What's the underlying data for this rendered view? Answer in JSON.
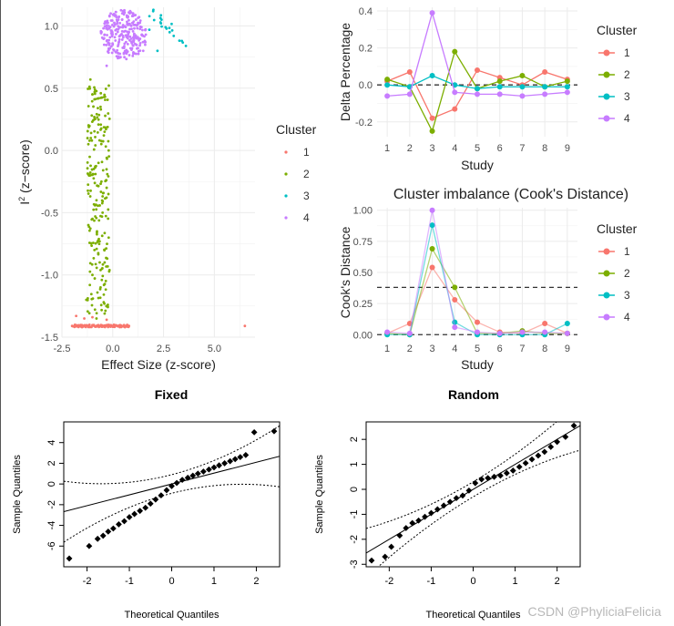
{
  "watermark": "CSDN @PhyliciaFelicia",
  "palette": {
    "cluster1": "#F8766D",
    "cluster2": "#7CAE00",
    "cluster3": "#00BFC4",
    "cluster4": "#C77CFF",
    "grid": "#EBEBEB",
    "ref_line": "#333333"
  },
  "chart_data": [
    {
      "type": "scatter",
      "xlabel": "Effect Size (z-score)",
      "ylabel": "I² (z−score)",
      "ylabel_main": "I",
      "ylabel_sup": "2",
      "ylabel_rest": " (z−score)",
      "xlim": [
        -2.5,
        7.0
      ],
      "ylim": [
        -1.5,
        1.15
      ],
      "xticks": [
        -2.5,
        0.0,
        2.5,
        5.0
      ],
      "xtick_labels": [
        "-2.5",
        "0.0",
        "2.5",
        "5.0"
      ],
      "yticks": [
        -1.5,
        -1.0,
        -0.5,
        0.0,
        0.5,
        1.0
      ],
      "ytick_labels": [
        "-1.5",
        "-1.0",
        "-0.5",
        "0.0",
        "0.5",
        "1.0"
      ],
      "grid": true,
      "legend": {
        "title": "Cluster",
        "labels": [
          "1",
          "2",
          "3",
          "4"
        ],
        "position": "right"
      },
      "series": [
        {
          "name": "1",
          "points": [
            [
              -2.0,
              -1.41
            ],
            [
              -1.6,
              -1.41
            ],
            [
              -1.2,
              -1.41
            ],
            [
              -0.8,
              -1.41
            ],
            [
              -0.4,
              -1.41
            ],
            [
              0.0,
              -1.41
            ],
            [
              0.4,
              -1.41
            ],
            [
              0.8,
              -1.41
            ],
            [
              -1.8,
              -1.33
            ],
            [
              -1.4,
              -1.35
            ],
            [
              -1.0,
              -1.34
            ],
            [
              -0.3,
              -1.36
            ],
            [
              6.5,
              -1.41
            ]
          ]
        },
        {
          "name": "2",
          "points": [
            [
              -1.1,
              0.57
            ],
            [
              -1.0,
              0.45
            ],
            [
              -0.6,
              0.35
            ],
            [
              -0.9,
              0.25
            ],
            [
              -0.4,
              0.15
            ],
            [
              -1.2,
              0.05
            ],
            [
              -0.2,
              0.0
            ],
            [
              -0.7,
              -0.1
            ],
            [
              -1.1,
              -0.2
            ],
            [
              -0.3,
              -0.3
            ],
            [
              -0.8,
              -0.4
            ],
            [
              -0.5,
              -0.5
            ],
            [
              -1.2,
              -0.6
            ],
            [
              -0.2,
              -0.7
            ],
            [
              -0.9,
              -0.8
            ],
            [
              -0.4,
              -0.9
            ],
            [
              -1.0,
              -1.0
            ],
            [
              -0.6,
              -1.1
            ],
            [
              -1.3,
              -1.2
            ],
            [
              -0.3,
              -1.25
            ],
            [
              -0.8,
              -1.35
            ]
          ]
        },
        {
          "name": "3",
          "points": [
            [
              1.8,
              0.97
            ],
            [
              2.0,
              1.13
            ],
            [
              2.4,
              1.05
            ],
            [
              2.8,
              0.95
            ],
            [
              3.0,
              0.92
            ],
            [
              3.4,
              0.88
            ],
            [
              3.6,
              0.84
            ],
            [
              2.2,
              0.8
            ],
            [
              2.6,
              0.99
            ]
          ]
        },
        {
          "name": "4",
          "points": [
            [
              -0.3,
              0.68
            ],
            [
              -0.1,
              1.1
            ],
            [
              0.2,
              1.05
            ],
            [
              0.5,
              1.0
            ],
            [
              0.8,
              0.95
            ],
            [
              1.2,
              0.9
            ],
            [
              1.5,
              0.8
            ],
            [
              0.0,
              0.85
            ],
            [
              -0.4,
              0.93
            ],
            [
              0.3,
              0.75
            ],
            [
              1.0,
              1.08
            ],
            [
              -0.2,
              1.0
            ]
          ]
        }
      ]
    },
    {
      "type": "line",
      "xlabel": "Study",
      "ylabel": "Delta Percentage",
      "x": [
        1,
        2,
        3,
        4,
        5,
        6,
        7,
        8,
        9
      ],
      "ylim": [
        -0.28,
        0.42
      ],
      "yticks": [
        -0.2,
        0.0,
        0.2,
        0.4
      ],
      "ytick_labels": [
        "-0.2",
        "0.0",
        "0.2",
        "0.4"
      ],
      "reference_lines": [
        0.0
      ],
      "grid": true,
      "legend": {
        "title": "Cluster",
        "labels": [
          "1",
          "2",
          "3",
          "4"
        ],
        "position": "right"
      },
      "series": [
        {
          "name": "1",
          "values": [
            0.02,
            0.07,
            -0.18,
            -0.13,
            0.08,
            0.04,
            0.0,
            0.07,
            0.03
          ]
        },
        {
          "name": "2",
          "values": [
            0.03,
            -0.01,
            -0.25,
            0.18,
            -0.02,
            0.02,
            0.05,
            -0.01,
            0.02
          ]
        },
        {
          "name": "3",
          "values": [
            0.0,
            -0.01,
            0.05,
            0.0,
            -0.02,
            -0.01,
            -0.01,
            -0.01,
            -0.01
          ]
        },
        {
          "name": "4",
          "values": [
            -0.06,
            -0.05,
            0.39,
            -0.04,
            -0.05,
            -0.05,
            -0.06,
            -0.05,
            -0.04
          ]
        }
      ]
    },
    {
      "type": "line",
      "title": "Cluster imbalance (Cook's Distance)",
      "xlabel": "Study",
      "ylabel": "Cook's Distance",
      "x": [
        1,
        2,
        3,
        4,
        5,
        6,
        7,
        8,
        9
      ],
      "ylim": [
        -0.02,
        1.02
      ],
      "yticks": [
        0.0,
        0.25,
        0.5,
        0.75,
        1.0
      ],
      "ytick_labels": [
        "0.00",
        "0.25",
        "0.50",
        "0.75",
        "1.00"
      ],
      "reference_lines": [
        0.0,
        0.38
      ],
      "grid": true,
      "legend": {
        "title": "Cluster",
        "labels": [
          "1",
          "2",
          "3",
          "4"
        ],
        "position": "right"
      },
      "series": [
        {
          "name": "1",
          "values": [
            0.01,
            0.09,
            0.54,
            0.28,
            0.1,
            0.02,
            0.01,
            0.09,
            0.01
          ]
        },
        {
          "name": "2",
          "values": [
            0.01,
            0.0,
            0.69,
            0.38,
            0.01,
            0.01,
            0.03,
            0.01,
            0.01
          ]
        },
        {
          "name": "3",
          "values": [
            0.0,
            0.0,
            0.88,
            0.1,
            0.0,
            0.0,
            0.0,
            0.0,
            0.09
          ]
        },
        {
          "name": "4",
          "values": [
            0.02,
            0.01,
            1.0,
            0.06,
            0.02,
            0.01,
            0.02,
            0.02,
            0.01
          ]
        }
      ]
    },
    {
      "type": "scatter",
      "title": "Fixed",
      "xlabel": "Theoretical Quantiles",
      "ylabel": "Sample Quantiles",
      "xlim": [
        -2.55,
        2.55
      ],
      "ylim": [
        -8.0,
        6.0
      ],
      "xticks": [
        -2,
        -1,
        0,
        1,
        2
      ],
      "xtick_labels": [
        "-2",
        "-1",
        "0",
        "1",
        "2"
      ],
      "yticks": [
        -6,
        -4,
        -2,
        0,
        2,
        4
      ],
      "ytick_labels": [
        "-6",
        "-4",
        "-2",
        "0",
        "2",
        "4"
      ],
      "reference_line": {
        "intercept": 0.0,
        "slope": 1.05
      },
      "envelope": {
        "lower_intercept": -0.9,
        "upper_intercept": 0.9,
        "slope": 1.05
      },
      "points": [
        [
          -2.42,
          -7.2
        ],
        [
          -1.95,
          -6.0
        ],
        [
          -1.75,
          -5.3
        ],
        [
          -1.62,
          -5.0
        ],
        [
          -1.5,
          -4.6
        ],
        [
          -1.38,
          -4.3
        ],
        [
          -1.25,
          -3.9
        ],
        [
          -1.12,
          -3.6
        ],
        [
          -1.0,
          -3.2
        ],
        [
          -0.88,
          -2.9
        ],
        [
          -0.75,
          -2.6
        ],
        [
          -0.62,
          -2.3
        ],
        [
          -0.5,
          -1.9
        ],
        [
          -0.38,
          -1.5
        ],
        [
          -0.25,
          -1.1
        ],
        [
          -0.12,
          -0.6
        ],
        [
          0.0,
          -0.2
        ],
        [
          0.12,
          0.1
        ],
        [
          0.25,
          0.4
        ],
        [
          0.38,
          0.6
        ],
        [
          0.5,
          0.8
        ],
        [
          0.62,
          1.0
        ],
        [
          0.75,
          1.2
        ],
        [
          0.88,
          1.4
        ],
        [
          1.0,
          1.6
        ],
        [
          1.12,
          1.8
        ],
        [
          1.25,
          2.0
        ],
        [
          1.38,
          2.2
        ],
        [
          1.5,
          2.4
        ],
        [
          1.62,
          2.6
        ],
        [
          1.75,
          2.8
        ],
        [
          1.95,
          5.0
        ],
        [
          2.42,
          5.1
        ]
      ]
    },
    {
      "type": "scatter",
      "title": "Random",
      "xlabel": "Theoretical Quantiles",
      "ylabel": "Sample Quantiles",
      "xlim": [
        -2.55,
        2.55
      ],
      "ylim": [
        -3.1,
        2.7
      ],
      "xticks": [
        -2,
        -1,
        0,
        1,
        2
      ],
      "xtick_labels": [
        "-2",
        "-1",
        "0",
        "1",
        "2"
      ],
      "yticks": [
        -3,
        -2,
        -1,
        0,
        1,
        2
      ],
      "ytick_labels": [
        "-3",
        "-2",
        "-1",
        "0",
        "1",
        "2"
      ],
      "reference_line": {
        "intercept": 0.0,
        "slope": 1.0
      },
      "envelope": {
        "lower_intercept": -0.3,
        "upper_intercept": 0.3,
        "slope": 1.0
      },
      "points": [
        [
          -2.42,
          -2.85
        ],
        [
          -2.1,
          -2.7
        ],
        [
          -1.95,
          -2.3
        ],
        [
          -1.75,
          -1.85
        ],
        [
          -1.6,
          -1.55
        ],
        [
          -1.45,
          -1.35
        ],
        [
          -1.3,
          -1.25
        ],
        [
          -1.15,
          -1.1
        ],
        [
          -1.0,
          -0.95
        ],
        [
          -0.85,
          -0.8
        ],
        [
          -0.7,
          -0.65
        ],
        [
          -0.55,
          -0.5
        ],
        [
          -0.4,
          -0.35
        ],
        [
          -0.25,
          -0.25
        ],
        [
          -0.1,
          -0.05
        ],
        [
          0.05,
          0.25
        ],
        [
          0.2,
          0.4
        ],
        [
          0.35,
          0.45
        ],
        [
          0.5,
          0.5
        ],
        [
          0.65,
          0.55
        ],
        [
          0.8,
          0.65
        ],
        [
          0.95,
          0.75
        ],
        [
          1.1,
          0.9
        ],
        [
          1.25,
          1.05
        ],
        [
          1.4,
          1.2
        ],
        [
          1.55,
          1.35
        ],
        [
          1.7,
          1.5
        ],
        [
          1.85,
          1.7
        ],
        [
          2.0,
          1.9
        ],
        [
          2.2,
          2.1
        ],
        [
          2.4,
          2.55
        ]
      ]
    }
  ]
}
